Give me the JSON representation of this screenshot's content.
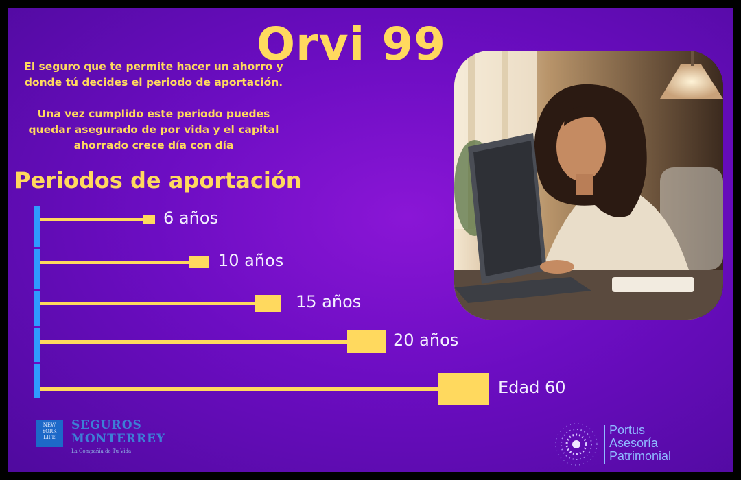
{
  "title": "Orvi 99",
  "intro": {
    "p1_line1": "El seguro que te permite hacer un ahorro y",
    "p1_line2": "donde tú decides el periodo de aportación.",
    "p2_line1": "Una vez cumplido este periodo puedes",
    "p2_line2": "quedar asegurado de por vida y el capital",
    "p2_line3": "ahorrado crece día con día"
  },
  "section_title": "Periodos de aportación",
  "chart_data": {
    "type": "bar",
    "orientation": "horizontal",
    "categories": [
      "6 años",
      "10 años",
      "15 años",
      "20 años",
      "Edad 60"
    ],
    "values": [
      6,
      10,
      15,
      20,
      60
    ],
    "title": "Periodos de aportación",
    "xlabel": "",
    "ylabel": "",
    "grid": false
  },
  "logos": {
    "seguros_nyl": "NEW YORK LIFE",
    "seguros_line1": "SEGUROS",
    "seguros_line2": "MONTERREY",
    "seguros_tagline": "La Compañía de Tu Vida",
    "portus_line1": "Portus",
    "portus_line2": "Asesoría",
    "portus_line3": "Patrimonial"
  },
  "colors": {
    "background": "#6c0dc2",
    "accent_yellow": "#ffd95e",
    "axis_blue": "#2f9bff"
  }
}
